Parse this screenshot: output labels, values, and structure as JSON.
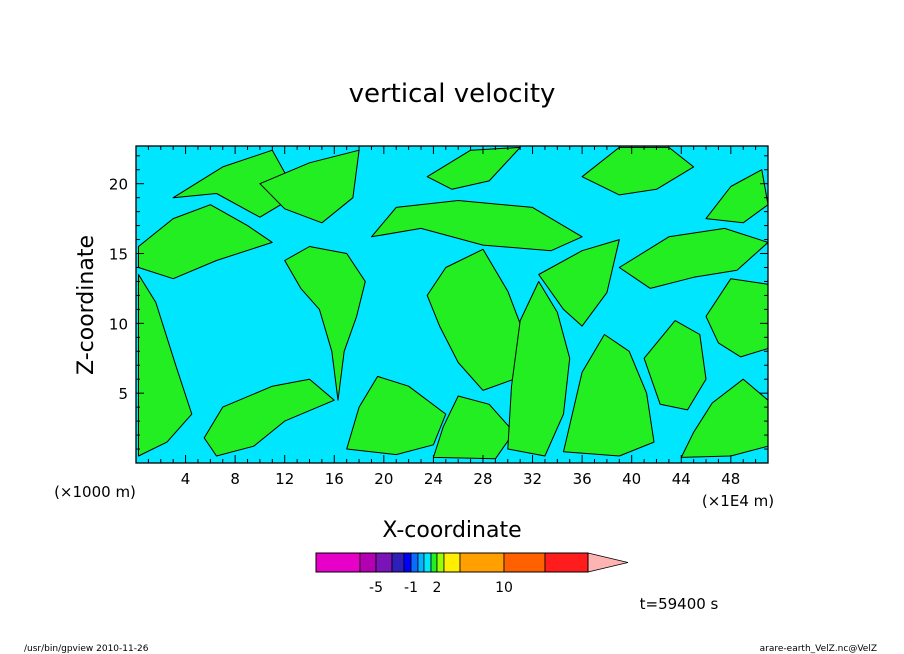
{
  "chart_data": {
    "type": "heatmap",
    "title": "vertical velocity",
    "xlabel": "X-coordinate",
    "ylabel": "Z-coordinate",
    "x_unit_left": "(×1000 m)",
    "x_unit_right": "(×1E4 m)",
    "x_ticks": [
      4,
      8,
      12,
      16,
      20,
      24,
      28,
      32,
      36,
      40,
      44,
      48
    ],
    "y_ticks": [
      5,
      10,
      15,
      20
    ],
    "xlim": [
      0,
      51
    ],
    "ylim": [
      0,
      22.7
    ],
    "grid": false,
    "colors": {
      "field_low": "#00e6ff",
      "field_high": "#22ee22",
      "contour": "#000000"
    },
    "field_regions": [
      {
        "level": "high",
        "polygon": [
          [
            0.2,
            0.5
          ],
          [
            2.5,
            1.5
          ],
          [
            4.5,
            3.5
          ],
          [
            3.2,
            7
          ],
          [
            1.6,
            11.5
          ],
          [
            0.2,
            13.5
          ]
        ]
      },
      {
        "level": "high",
        "polygon": [
          [
            6.5,
            0.5
          ],
          [
            9.5,
            1.2
          ],
          [
            12,
            3
          ],
          [
            16,
            4.5
          ],
          [
            14,
            6
          ],
          [
            11,
            5.5
          ],
          [
            7,
            4
          ],
          [
            5.5,
            1.8
          ]
        ]
      },
      {
        "level": "high",
        "polygon": [
          [
            0.2,
            15.5
          ],
          [
            3,
            17.5
          ],
          [
            6,
            18.5
          ],
          [
            9,
            17
          ],
          [
            11,
            15.8
          ],
          [
            6.5,
            14.5
          ],
          [
            3,
            13.2
          ],
          [
            0.2,
            14
          ]
        ]
      },
      {
        "level": "high",
        "polygon": [
          [
            3,
            19
          ],
          [
            7,
            21.2
          ],
          [
            11,
            22.4
          ],
          [
            13,
            19.2
          ],
          [
            10,
            17.6
          ],
          [
            6.5,
            19.3
          ]
        ]
      },
      {
        "level": "high",
        "polygon": [
          [
            12,
            14.5
          ],
          [
            14,
            15.5
          ],
          [
            17,
            15
          ],
          [
            18.5,
            13
          ],
          [
            17.8,
            10.5
          ],
          [
            16.8,
            8
          ],
          [
            16.3,
            4.5
          ],
          [
            15.8,
            8
          ],
          [
            14.8,
            11
          ],
          [
            13.3,
            12.5
          ]
        ]
      },
      {
        "level": "high",
        "polygon": [
          [
            10,
            20
          ],
          [
            14,
            21.5
          ],
          [
            18,
            22.4
          ],
          [
            17.5,
            19
          ],
          [
            15,
            17.2
          ],
          [
            12,
            18.2
          ]
        ]
      },
      {
        "level": "high",
        "polygon": [
          [
            17,
            1
          ],
          [
            21,
            0.6
          ],
          [
            24,
            1.3
          ],
          [
            25,
            3.5
          ],
          [
            22,
            5.5
          ],
          [
            19.5,
            6.2
          ],
          [
            18,
            4
          ]
        ]
      },
      {
        "level": "high",
        "polygon": [
          [
            19,
            16.2
          ],
          [
            21,
            18.3
          ],
          [
            26,
            18.8
          ],
          [
            32,
            18.3
          ],
          [
            36,
            16.2
          ],
          [
            33.5,
            15.2
          ],
          [
            28,
            15.6
          ],
          [
            23,
            16.8
          ]
        ]
      },
      {
        "level": "high",
        "polygon": [
          [
            23.5,
            20.5
          ],
          [
            27,
            22.4
          ],
          [
            31,
            22.6
          ],
          [
            28.5,
            20.2
          ],
          [
            25.5,
            19.6
          ]
        ]
      },
      {
        "level": "high",
        "polygon": [
          [
            23.5,
            12
          ],
          [
            25,
            14
          ],
          [
            28,
            15.3
          ],
          [
            30,
            12.3
          ],
          [
            31.5,
            8.8
          ],
          [
            30.5,
            6
          ],
          [
            28,
            5.2
          ],
          [
            26,
            7.2
          ],
          [
            24.5,
            9.8
          ]
        ]
      },
      {
        "level": "high",
        "polygon": [
          [
            24,
            0.4
          ],
          [
            29,
            0.3
          ],
          [
            30.5,
            2.2
          ],
          [
            28.5,
            4.2
          ],
          [
            26,
            4.8
          ],
          [
            24.8,
            2.6
          ]
        ]
      },
      {
        "level": "high",
        "polygon": [
          [
            30,
            1
          ],
          [
            33,
            0.5
          ],
          [
            34.5,
            3.5
          ],
          [
            35,
            7.5
          ],
          [
            34,
            10.8
          ],
          [
            32.5,
            13
          ],
          [
            31,
            10.2
          ],
          [
            30.3,
            5.5
          ]
        ]
      },
      {
        "level": "high",
        "polygon": [
          [
            32.5,
            13.5
          ],
          [
            36,
            15.2
          ],
          [
            39,
            16
          ],
          [
            38,
            12.2
          ],
          [
            36,
            9.8
          ],
          [
            34.5,
            11
          ]
        ]
      },
      {
        "level": "high",
        "polygon": [
          [
            34.5,
            0.8
          ],
          [
            39,
            0.5
          ],
          [
            41.8,
            1.5
          ],
          [
            41.2,
            5
          ],
          [
            39.8,
            8
          ],
          [
            37.8,
            9.2
          ],
          [
            36,
            6.5
          ]
        ]
      },
      {
        "level": "high",
        "polygon": [
          [
            39,
            14
          ],
          [
            43,
            16.2
          ],
          [
            47.5,
            16.8
          ],
          [
            51,
            15.8
          ],
          [
            48.5,
            13.8
          ],
          [
            45,
            13.3
          ],
          [
            41.5,
            12.5
          ]
        ]
      },
      {
        "level": "high",
        "polygon": [
          [
            41,
            7.5
          ],
          [
            43.5,
            10.2
          ],
          [
            45.5,
            9.2
          ],
          [
            46,
            6
          ],
          [
            44.5,
            3.8
          ],
          [
            42.3,
            4.2
          ]
        ]
      },
      {
        "level": "high",
        "polygon": [
          [
            44,
            0.4
          ],
          [
            48,
            0.5
          ],
          [
            51,
            1.2
          ],
          [
            51,
            4.5
          ],
          [
            49,
            6
          ],
          [
            46.5,
            4.3
          ],
          [
            45,
            2.2
          ]
        ]
      },
      {
        "level": "high",
        "polygon": [
          [
            46,
            10.5
          ],
          [
            48,
            13.2
          ],
          [
            51,
            12.8
          ],
          [
            51,
            8.2
          ],
          [
            48.8,
            7.6
          ],
          [
            47,
            8.6
          ]
        ]
      },
      {
        "level": "high",
        "polygon": [
          [
            36,
            20.5
          ],
          [
            39,
            22.6
          ],
          [
            43,
            22.6
          ],
          [
            45,
            21.2
          ],
          [
            42,
            19.6
          ],
          [
            39,
            19.2
          ]
        ]
      },
      {
        "level": "high",
        "polygon": [
          [
            46,
            17.5
          ],
          [
            48,
            19.8
          ],
          [
            50.5,
            21
          ],
          [
            51,
            18.5
          ],
          [
            49,
            17.2
          ]
        ]
      }
    ],
    "colorbar": {
      "labels": [
        "-5",
        "-1",
        "2",
        "10"
      ],
      "colors": [
        "#e600c8",
        "#b300b3",
        "#7a14b8",
        "#2e1fb8",
        "#0000ff",
        "#0a6cff",
        "#00b4ff",
        "#00e6ff",
        "#22ee22",
        "#98ff00",
        "#ffee00",
        "#ffa000",
        "#ff6000",
        "#ff1c1c",
        "#ff7878",
        "#ffb4b4"
      ]
    },
    "time_label": "t=59400 s"
  },
  "footer": {
    "left": "/usr/bin/gpview   2010-11-26",
    "right": "arare-earth_VelZ.nc@VelZ"
  }
}
